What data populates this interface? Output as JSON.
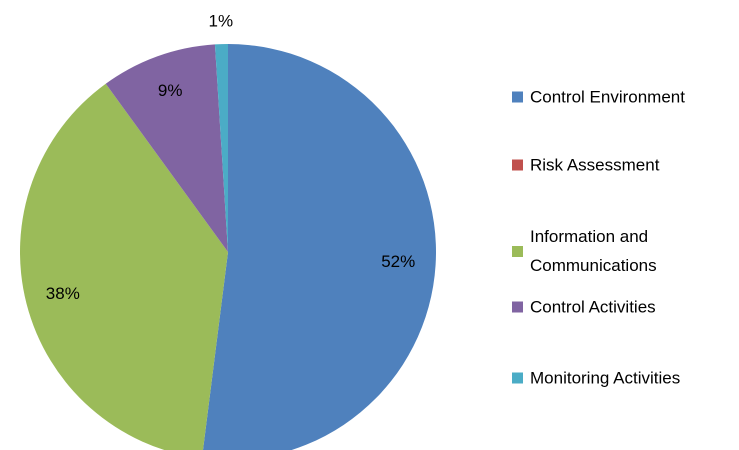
{
  "chart_data": {
    "type": "pie",
    "categories": [
      "Control Environment",
      "Risk Assessment",
      "Information and Communications",
      "Control Activities",
      "Monitoring Activities"
    ],
    "values": [
      52,
      0,
      38,
      9,
      1
    ],
    "value_labels": [
      "52%",
      null,
      "38%",
      "9%",
      "1%"
    ],
    "colors": [
      "#4f81bd",
      "#c0504d",
      "#9bbb59",
      "#8064a2",
      "#4bacc6"
    ],
    "legend": "right"
  }
}
